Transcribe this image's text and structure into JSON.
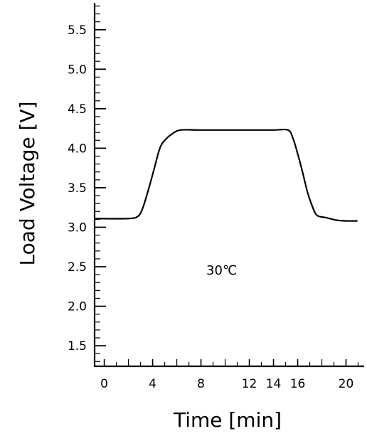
{
  "chart_data": {
    "type": "line",
    "xlabel": "Time [min]",
    "ylabel": "Load  Voltage [V]",
    "xlim": [
      -0.8,
      21.5
    ],
    "ylim": [
      1.24,
      5.84
    ],
    "xticks": [
      0,
      4,
      8,
      12,
      14,
      16,
      20
    ],
    "xtick_labels": [
      "0",
      "4",
      "8",
      "12",
      "14",
      "16",
      "20"
    ],
    "yticks": [
      1.5,
      2.0,
      2.5,
      3.0,
      3.5,
      4.0,
      4.5,
      5.0,
      5.5
    ],
    "ytick_labels": [
      "1.5",
      "2.0",
      "2.5",
      "3.0",
      "3.5",
      "4.0",
      "4.5",
      "5.0",
      "5.5"
    ],
    "annotation": "30℃",
    "grid": false,
    "series": [
      {
        "x": [
          -0.7,
          2.0,
          2.8,
          3.2,
          3.7,
          4.2,
          4.6,
          5.0,
          5.6,
          6.3,
          8.0,
          10.0,
          12.0,
          14.0,
          15.2,
          15.6,
          16.0,
          16.4,
          16.8,
          17.2,
          17.6,
          18.4,
          19.2,
          20.0,
          20.9
        ],
        "y": [
          3.11,
          3.11,
          3.14,
          3.25,
          3.5,
          3.78,
          4.0,
          4.1,
          4.18,
          4.23,
          4.23,
          4.23,
          4.23,
          4.23,
          4.23,
          4.13,
          3.93,
          3.7,
          3.45,
          3.27,
          3.15,
          3.12,
          3.09,
          3.08,
          3.08
        ]
      }
    ]
  }
}
